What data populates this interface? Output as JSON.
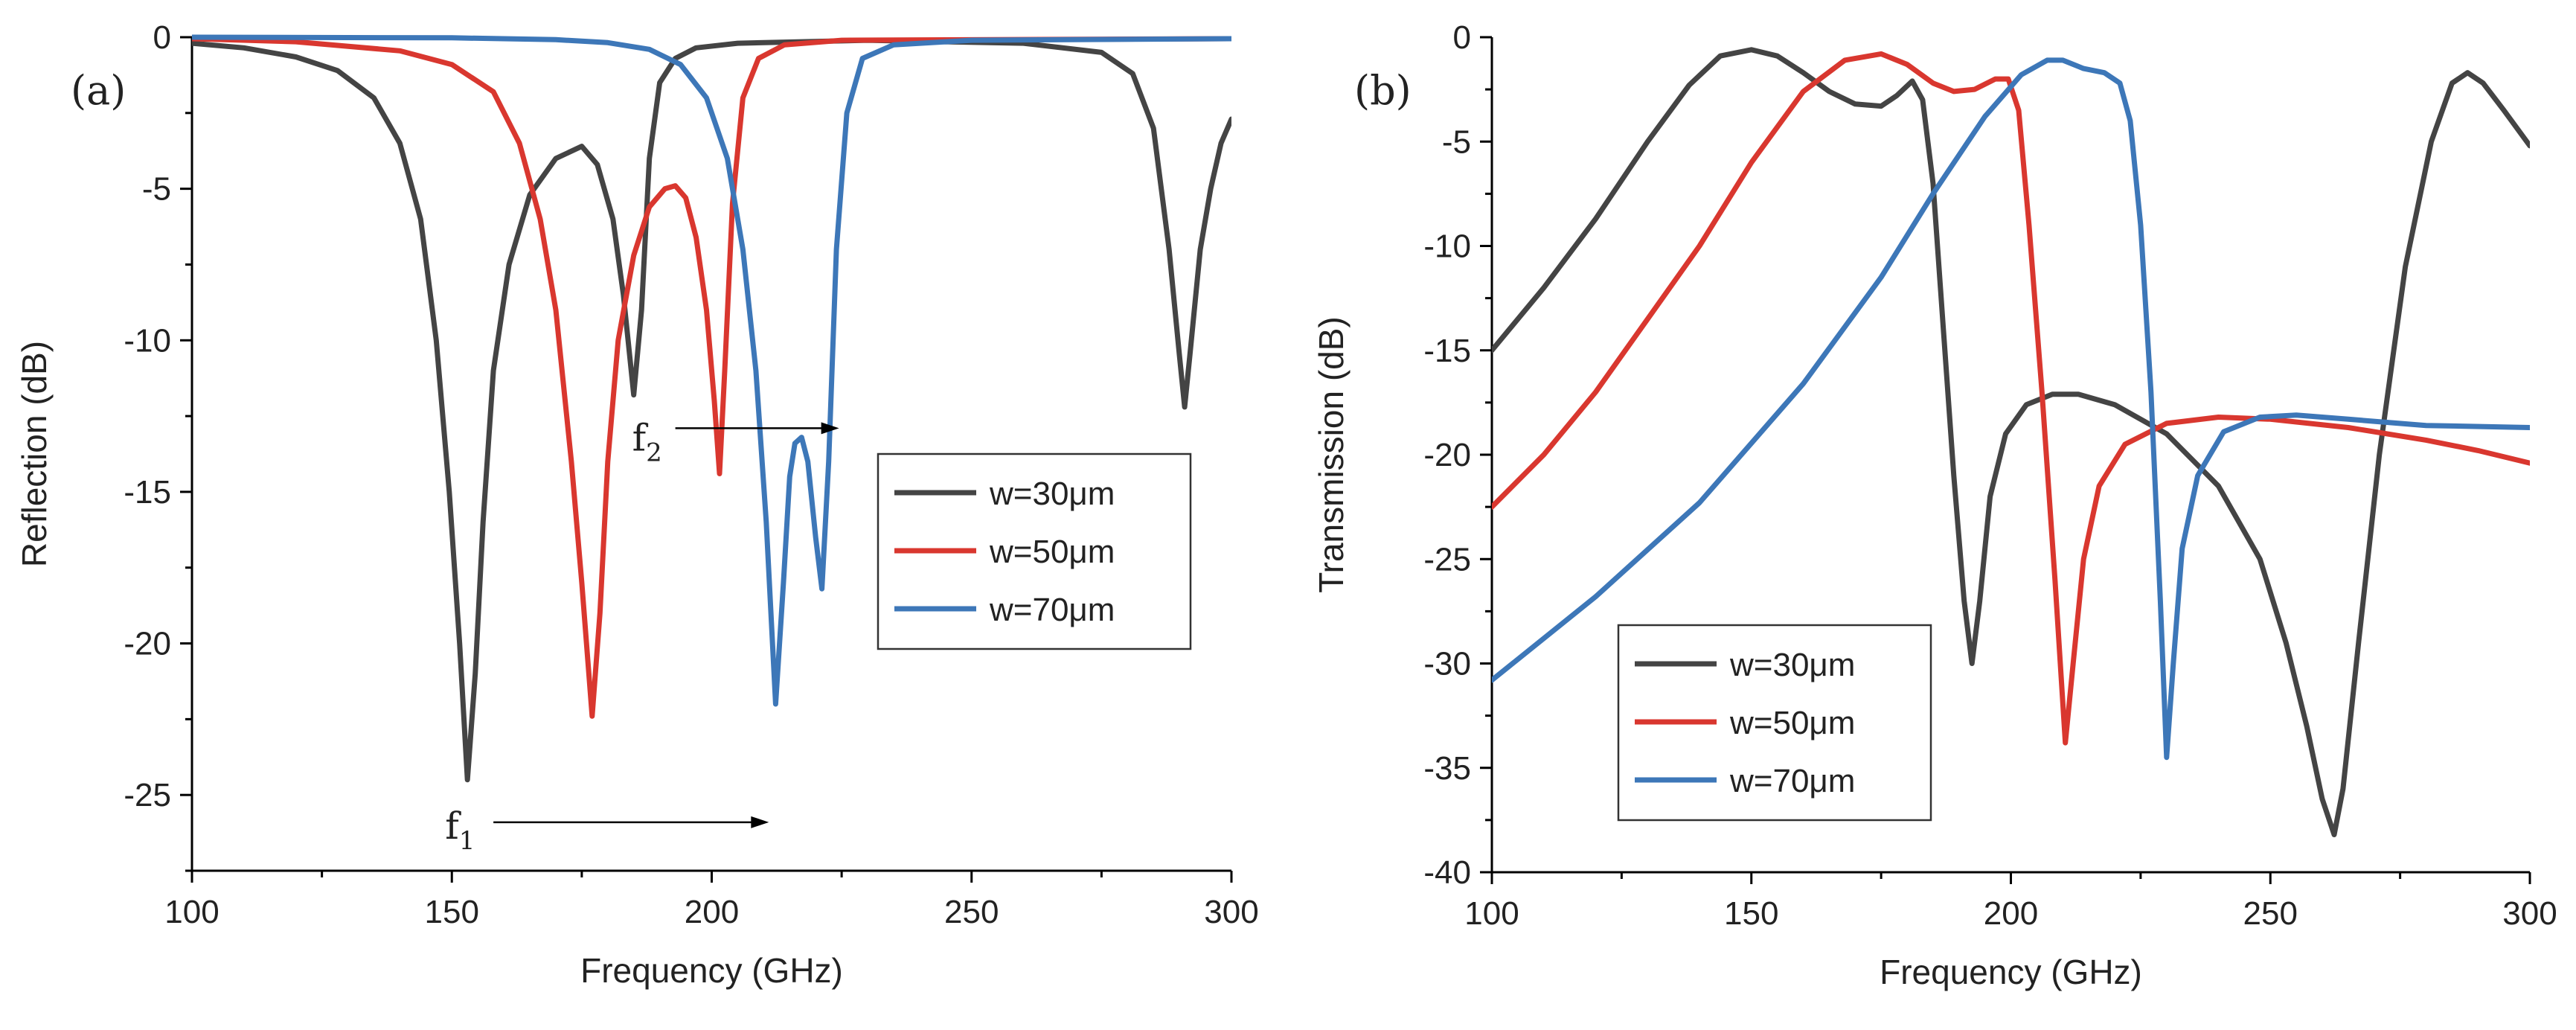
{
  "chart_data": [
    {
      "id": "a",
      "panel_label": "(a)",
      "type": "line",
      "xlabel": "Frequency (GHz)",
      "ylabel": "Reflection (dB)",
      "xlim": [
        100,
        300
      ],
      "ylim": [
        -27.5,
        0
      ],
      "xticks": [
        100,
        150,
        200,
        250,
        300
      ],
      "yticks": [
        0,
        -5,
        -10,
        -15,
        -20,
        -25
      ],
      "legend_position": "center-right",
      "series": [
        {
          "name": "w=30μm",
          "color": "#444444",
          "points": [
            [
              100,
              -0.2
            ],
            [
              110,
              -0.35
            ],
            [
              120,
              -0.65
            ],
            [
              128,
              -1.1
            ],
            [
              135,
              -2
            ],
            [
              140,
              -3.5
            ],
            [
              144,
              -6
            ],
            [
              147,
              -10
            ],
            [
              149.5,
              -15
            ],
            [
              151.5,
              -20
            ],
            [
              153,
              -24.5
            ],
            [
              154.5,
              -21
            ],
            [
              156,
              -16
            ],
            [
              158,
              -11
            ],
            [
              161,
              -7.5
            ],
            [
              165,
              -5.2
            ],
            [
              170,
              -4
            ],
            [
              175,
              -3.6
            ],
            [
              178,
              -4.2
            ],
            [
              181,
              -6
            ],
            [
              183,
              -8.5
            ],
            [
              185,
              -11.8
            ],
            [
              186.5,
              -9
            ],
            [
              188,
              -4
            ],
            [
              190,
              -1.5
            ],
            [
              193,
              -0.7
            ],
            [
              197,
              -0.35
            ],
            [
              205,
              -0.2
            ],
            [
              230,
              -0.1
            ],
            [
              260,
              -0.2
            ],
            [
              275,
              -0.5
            ],
            [
              281,
              -1.2
            ],
            [
              285,
              -3
            ],
            [
              288,
              -7
            ],
            [
              290,
              -10.5
            ],
            [
              291,
              -12.2
            ],
            [
              292,
              -10.5
            ],
            [
              294,
              -7
            ],
            [
              296,
              -5
            ],
            [
              298,
              -3.5
            ],
            [
              300,
              -2.7
            ]
          ]
        },
        {
          "name": "w=50μm",
          "color": "#d9372f",
          "points": [
            [
              100,
              -0.05
            ],
            [
              120,
              -0.15
            ],
            [
              140,
              -0.45
            ],
            [
              150,
              -0.9
            ],
            [
              158,
              -1.8
            ],
            [
              163,
              -3.5
            ],
            [
              167,
              -6
            ],
            [
              170,
              -9
            ],
            [
              173,
              -14
            ],
            [
              175,
              -18
            ],
            [
              177,
              -22.4
            ],
            [
              178.5,
              -19
            ],
            [
              180,
              -14
            ],
            [
              182,
              -10
            ],
            [
              185,
              -7.2
            ],
            [
              188,
              -5.6
            ],
            [
              191,
              -5
            ],
            [
              193,
              -4.9
            ],
            [
              195,
              -5.3
            ],
            [
              197,
              -6.6
            ],
            [
              199,
              -9
            ],
            [
              200.5,
              -12
            ],
            [
              201.5,
              -14.4
            ],
            [
              202.5,
              -11
            ],
            [
              204,
              -5.5
            ],
            [
              206,
              -2
            ],
            [
              209,
              -0.7
            ],
            [
              214,
              -0.25
            ],
            [
              225,
              -0.1
            ],
            [
              300,
              -0.05
            ]
          ]
        },
        {
          "name": "w=70μm",
          "color": "#3d77b8",
          "points": [
            [
              100,
              0
            ],
            [
              150,
              -0.02
            ],
            [
              170,
              -0.08
            ],
            [
              180,
              -0.18
            ],
            [
              188,
              -0.4
            ],
            [
              194,
              -0.9
            ],
            [
              199,
              -2
            ],
            [
              203,
              -4
            ],
            [
              206,
              -7
            ],
            [
              208.5,
              -11
            ],
            [
              210.5,
              -16
            ],
            [
              212.3,
              -22
            ],
            [
              213.8,
              -18
            ],
            [
              215,
              -14.5
            ],
            [
              216,
              -13.4
            ],
            [
              217.3,
              -13.2
            ],
            [
              218.5,
              -14
            ],
            [
              220,
              -16.5
            ],
            [
              221.2,
              -18.2
            ],
            [
              222.5,
              -14
            ],
            [
              224,
              -7
            ],
            [
              226,
              -2.5
            ],
            [
              229,
              -0.7
            ],
            [
              235,
              -0.25
            ],
            [
              250,
              -0.1
            ],
            [
              300,
              -0.05
            ]
          ]
        }
      ],
      "annotations": [
        {
          "label": "f",
          "subscript": "1",
          "x": 153,
          "y": -26,
          "arrow_from": [
            158,
            -25.9
          ],
          "arrow_to": [
            211,
            -25.9
          ]
        },
        {
          "label": "f",
          "subscript": "2",
          "x": 189,
          "y": -13.2,
          "arrow_from": [
            193,
            -12.9
          ],
          "arrow_to": [
            224.5,
            -12.9
          ]
        }
      ]
    },
    {
      "id": "b",
      "panel_label": "(b)",
      "type": "line",
      "xlabel": "Frequency (GHz)",
      "ylabel": "Transmission (dB)",
      "xlim": [
        100,
        300
      ],
      "ylim": [
        -40,
        0
      ],
      "xticks": [
        100,
        150,
        200,
        250,
        300
      ],
      "yticks": [
        0,
        -5,
        -10,
        -15,
        -20,
        -25,
        -30,
        -35,
        -40
      ],
      "legend_position": "lower-left",
      "series": [
        {
          "name": "w=30μm",
          "color": "#444444",
          "points": [
            [
              100,
              -15
            ],
            [
              110,
              -12
            ],
            [
              120,
              -8.7
            ],
            [
              130,
              -5
            ],
            [
              138,
              -2.3
            ],
            [
              144,
              -0.9
            ],
            [
              150,
              -0.6
            ],
            [
              155,
              -0.9
            ],
            [
              160,
              -1.7
            ],
            [
              165,
              -2.6
            ],
            [
              170,
              -3.2
            ],
            [
              175,
              -3.3
            ],
            [
              178,
              -2.8
            ],
            [
              181,
              -2.1
            ],
            [
              183,
              -3
            ],
            [
              185,
              -7
            ],
            [
              187,
              -14
            ],
            [
              189,
              -21
            ],
            [
              191,
              -27
            ],
            [
              192.5,
              -30
            ],
            [
              194,
              -27
            ],
            [
              196,
              -22
            ],
            [
              199,
              -19
            ],
            [
              203,
              -17.6
            ],
            [
              208,
              -17.1
            ],
            [
              213,
              -17.1
            ],
            [
              220,
              -17.6
            ],
            [
              230,
              -19
            ],
            [
              240,
              -21.5
            ],
            [
              248,
              -25
            ],
            [
              253,
              -29
            ],
            [
              257,
              -33
            ],
            [
              260,
              -36.5
            ],
            [
              262.3,
              -38.2
            ],
            [
              264,
              -36
            ],
            [
              267,
              -29
            ],
            [
              271,
              -20
            ],
            [
              276,
              -11
            ],
            [
              281,
              -5
            ],
            [
              285,
              -2.2
            ],
            [
              288,
              -1.7
            ],
            [
              291,
              -2.2
            ],
            [
              295,
              -3.5
            ],
            [
              300,
              -5.2
            ]
          ]
        },
        {
          "name": "w=50μm",
          "color": "#d9372f",
          "points": [
            [
              100,
              -22.5
            ],
            [
              110,
              -20
            ],
            [
              120,
              -17
            ],
            [
              130,
              -13.5
            ],
            [
              140,
              -10
            ],
            [
              150,
              -6
            ],
            [
              160,
              -2.6
            ],
            [
              168,
              -1.1
            ],
            [
              175,
              -0.8
            ],
            [
              180,
              -1.3
            ],
            [
              185,
              -2.2
            ],
            [
              189,
              -2.6
            ],
            [
              193,
              -2.5
            ],
            [
              197,
              -2
            ],
            [
              199.5,
              -2
            ],
            [
              201.5,
              -3.5
            ],
            [
              203.5,
              -9
            ],
            [
              206,
              -17
            ],
            [
              208.5,
              -26
            ],
            [
              210.5,
              -33.8
            ],
            [
              212,
              -30
            ],
            [
              214,
              -25
            ],
            [
              217,
              -21.5
            ],
            [
              222,
              -19.5
            ],
            [
              230,
              -18.5
            ],
            [
              240,
              -18.2
            ],
            [
              250,
              -18.3
            ],
            [
              265,
              -18.7
            ],
            [
              280,
              -19.3
            ],
            [
              290,
              -19.8
            ],
            [
              300,
              -20.4
            ]
          ]
        },
        {
          "name": "w=70μm",
          "color": "#3d77b8",
          "points": [
            [
              100,
              -30.8
            ],
            [
              120,
              -26.8
            ],
            [
              140,
              -22.3
            ],
            [
              160,
              -16.6
            ],
            [
              175,
              -11.5
            ],
            [
              185,
              -7.5
            ],
            [
              195,
              -3.8
            ],
            [
              202,
              -1.8
            ],
            [
              207,
              -1.1
            ],
            [
              210,
              -1.1
            ],
            [
              214,
              -1.5
            ],
            [
              218,
              -1.7
            ],
            [
              221,
              -2.2
            ],
            [
              223,
              -4
            ],
            [
              225,
              -9
            ],
            [
              227,
              -17
            ],
            [
              228.8,
              -27
            ],
            [
              230,
              -34.5
            ],
            [
              231.3,
              -30
            ],
            [
              233,
              -24.5
            ],
            [
              236,
              -21
            ],
            [
              241,
              -18.9
            ],
            [
              248,
              -18.2
            ],
            [
              255,
              -18.1
            ],
            [
              265,
              -18.3
            ],
            [
              280,
              -18.6
            ],
            [
              300,
              -18.7
            ]
          ]
        }
      ]
    }
  ]
}
